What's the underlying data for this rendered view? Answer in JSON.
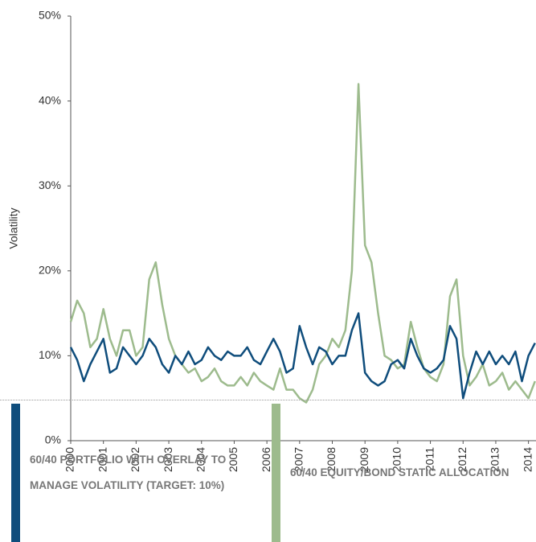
{
  "chart_data": {
    "type": "line",
    "y_label": "Volatility",
    "xlim": [
      2000,
      2014.23
    ],
    "xticks": [
      2000,
      2001,
      2002,
      2003,
      2004,
      2005,
      2006,
      2007,
      2008,
      2009,
      2010,
      2011,
      2012,
      2013,
      2014
    ],
    "ylim": [
      0,
      50
    ],
    "yticks": [
      {
        "value": 0,
        "label": "0%"
      },
      {
        "value": 10,
        "label": "10%"
      },
      {
        "value": 20,
        "label": "20%"
      },
      {
        "value": 30,
        "label": "30%"
      },
      {
        "value": 40,
        "label": "40%"
      },
      {
        "value": 50,
        "label": "50%"
      }
    ],
    "legend": "bottom",
    "x": [
      2000,
      2000.2,
      2000.4,
      2000.6,
      2000.8,
      2001,
      2001.2,
      2001.4,
      2001.6,
      2001.8,
      2002,
      2002.2,
      2002.4,
      2002.6,
      2002.8,
      2003,
      2003.2,
      2003.4,
      2003.6,
      2003.8,
      2004,
      2004.2,
      2004.4,
      2004.6,
      2004.8,
      2005,
      2005.2,
      2005.4,
      2005.6,
      2005.8,
      2006,
      2006.2,
      2006.4,
      2006.6,
      2006.8,
      2007,
      2007.2,
      2007.4,
      2007.6,
      2007.8,
      2008,
      2008.2,
      2008.4,
      2008.6,
      2008.8,
      2009,
      2009.2,
      2009.4,
      2009.6,
      2009.8,
      2010,
      2010.2,
      2010.4,
      2010.6,
      2010.8,
      2011,
      2011.2,
      2011.4,
      2011.6,
      2011.8,
      2012,
      2012.2,
      2012.4,
      2012.6,
      2012.8,
      2013,
      2013.2,
      2013.4,
      2013.6,
      2013.8,
      2014,
      2014.2
    ],
    "series": [
      {
        "name": "60/40 EQUITY/BOND STATIC ALLOCATION",
        "color": "#9dbb8d",
        "values": [
          14,
          16.5,
          15,
          11,
          12,
          15.5,
          12,
          10,
          13,
          13,
          10,
          11,
          19,
          21,
          16,
          12,
          10,
          9,
          8,
          8.5,
          7,
          7.5,
          8.5,
          7,
          6.5,
          6.5,
          7.5,
          6.5,
          8,
          7,
          6.5,
          6,
          8.5,
          6,
          6,
          5,
          4.5,
          6,
          9,
          10,
          12,
          11,
          13,
          20,
          42,
          23,
          21,
          15,
          10,
          9.5,
          8.5,
          9,
          14,
          11,
          8.5,
          7.5,
          7,
          9,
          17,
          19,
          10,
          6.5,
          7.5,
          9,
          6.5,
          7,
          8,
          6,
          7,
          6,
          5,
          7
        ]
      },
      {
        "name": "60/40 PORTFOLIO WITH OVERLAY TO MANAGE VOLATILITY (TARGET: 10%)",
        "color": "#0f4d7c",
        "values": [
          11,
          9.5,
          7,
          9,
          10.5,
          12,
          8,
          8.5,
          11,
          10,
          9,
          10,
          12,
          11,
          9,
          8,
          10,
          9,
          10.5,
          9,
          9.5,
          11,
          10,
          9.5,
          10.5,
          10,
          10,
          11,
          9.5,
          9,
          10.5,
          12,
          10.5,
          8,
          8.5,
          13.5,
          11,
          9,
          11,
          10.5,
          9,
          10,
          10,
          13,
          15,
          8,
          7,
          6.5,
          7,
          9,
          9.5,
          8.5,
          12,
          10,
          8.5,
          8,
          8.5,
          9.5,
          13.5,
          12,
          5,
          8,
          10.5,
          9,
          10.5,
          9,
          10,
          9,
          10.5,
          7,
          10,
          11.5
        ]
      }
    ]
  }
}
